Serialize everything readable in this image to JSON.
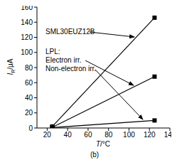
{
  "chart_data": {
    "type": "line",
    "title": "(b)",
    "x_label": "T/°C",
    "y_label": "IR/μA",
    "annotations": [
      "SML30EUZ12B",
      "LPL:",
      "Electron irr.",
      "Non-electron irr."
    ],
    "xlim": [
      10,
      140
    ],
    "xticks": [
      20,
      40,
      60,
      80,
      100,
      120,
      140
    ],
    "ylim": [
      0,
      160
    ],
    "yticks": [
      0,
      20,
      40,
      60,
      80,
      100,
      120,
      140,
      160
    ],
    "grid": false,
    "series": [
      {
        "name": "SML30EUZ12B",
        "color": "#000000",
        "marker": "square",
        "x": [
          25,
          125
        ],
        "values": [
          2,
          146
        ]
      },
      {
        "name": "Electron irr.",
        "color": "#000000",
        "marker": "square",
        "x": [
          25,
          125
        ],
        "values": [
          1,
          68
        ]
      },
      {
        "name": "Non-electron irr.",
        "color": "#000000",
        "marker": "square",
        "x": [
          25,
          125
        ],
        "values": [
          0.5,
          10
        ]
      }
    ]
  }
}
